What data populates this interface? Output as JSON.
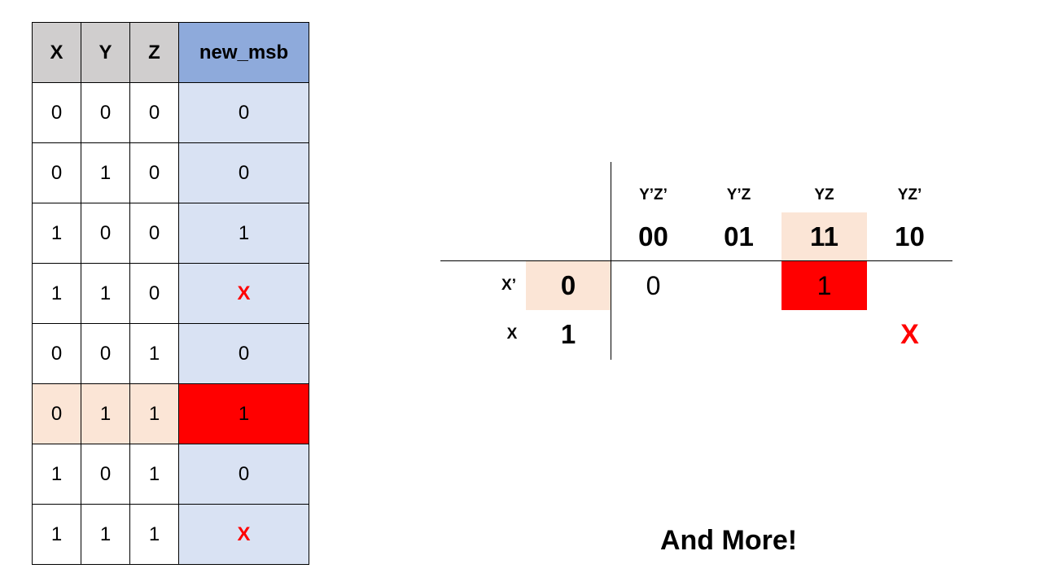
{
  "truth_table": {
    "headers": [
      "X",
      "Y",
      "Z",
      "new_msb"
    ],
    "rows": [
      [
        "0",
        "0",
        "0",
        "0"
      ],
      [
        "0",
        "1",
        "0",
        "0"
      ],
      [
        "1",
        "0",
        "0",
        "1"
      ],
      [
        "1",
        "1",
        "0",
        "X"
      ],
      [
        "0",
        "0",
        "1",
        "0"
      ],
      [
        "0",
        "1",
        "1",
        "1"
      ],
      [
        "1",
        "0",
        "1",
        "0"
      ],
      [
        "1",
        "1",
        "1",
        "X"
      ]
    ],
    "highlighted_row_index": 5
  },
  "kmap": {
    "column_labels": [
      "Y’Z’",
      "Y’Z",
      "YZ",
      "YZ’"
    ],
    "column_codes": [
      "00",
      "01",
      "11",
      "10"
    ],
    "row_labels": [
      "X’",
      "X"
    ],
    "row_codes": [
      "0",
      "1"
    ],
    "cells": [
      [
        "0",
        "",
        "1",
        ""
      ],
      [
        "",
        "",
        "",
        "X"
      ]
    ],
    "highlighted_column_index": 2,
    "highlighted_row_index": 0,
    "highlighted_cell": [
      0,
      2
    ]
  },
  "footer_text": "And More!",
  "colors": {
    "header_input_bg": "#d0cece",
    "header_output_bg": "#8eaadb",
    "output_column_bg": "#d9e2f3",
    "highlight_input_bg": "#fbe5d6",
    "highlight_output_bg": "#ff0000",
    "dont_care_text": "#ff0000"
  }
}
